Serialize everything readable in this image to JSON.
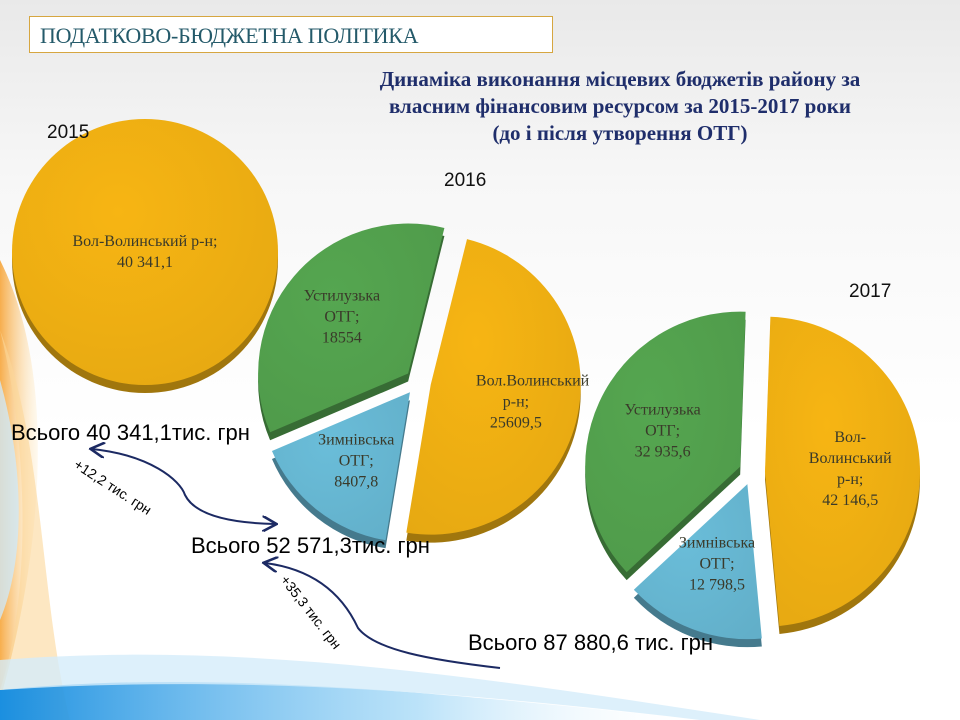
{
  "header": {
    "section_title": "ПОДАТКОВО-БЮДЖЕТНА ПОЛІТИКА",
    "title_lines": [
      "Динаміка виконання місцевих бюджетів району за",
      "власним фінансовим ресурсом за 2015-2017 роки",
      "(до і після утворення ОТГ)"
    ]
  },
  "totals": {
    "y2015": "Всього 40 341,1тис. грн",
    "y2016": "Всього 52 571,3тис. грн",
    "y2017": "Всього 87 880,6 тис. грн"
  },
  "deltas": {
    "d2016": "+12,2 тис. грн",
    "d2017": "+35,3 тис. грн"
  },
  "colors": {
    "vol": "#e5a812",
    "ust": "#4f9a4a",
    "zmin": "#62afc9",
    "arrow": "#1c2a63",
    "title": "#1f2e6b",
    "section": "#245a6a"
  },
  "chart_data": [
    {
      "type": "pie",
      "title": "2015",
      "slices": [
        {
          "name": "Вол-Волинський р-н",
          "value": 40341.1,
          "label_value": "40 341,1",
          "color": "#e5a812"
        }
      ]
    },
    {
      "type": "pie",
      "title": "2016",
      "exploded": true,
      "slices": [
        {
          "name": "Вол.Волинський р-н",
          "value": 25609.5,
          "label_value": "25609,5",
          "color": "#e5a812"
        },
        {
          "name": "Зимнівська ОТГ",
          "value": 8407.8,
          "label_value": "8407,8",
          "color": "#62afc9"
        },
        {
          "name": "Устилузька ОТГ",
          "value": 18554,
          "label_value": "18554",
          "color": "#4f9a4a"
        }
      ]
    },
    {
      "type": "pie",
      "title": "2017",
      "exploded": true,
      "slices": [
        {
          "name": "Вол-Волинський р-н",
          "value": 42146.5,
          "label_value": "42 146,5",
          "color": "#e5a812"
        },
        {
          "name": "Зимнівська ОТГ",
          "value": 12798.5,
          "label_value": "12 798,5",
          "color": "#62afc9"
        },
        {
          "name": "Устилузька ОТГ",
          "value": 32935.6,
          "label_value": "32 935,6",
          "color": "#4f9a4a"
        }
      ]
    }
  ]
}
